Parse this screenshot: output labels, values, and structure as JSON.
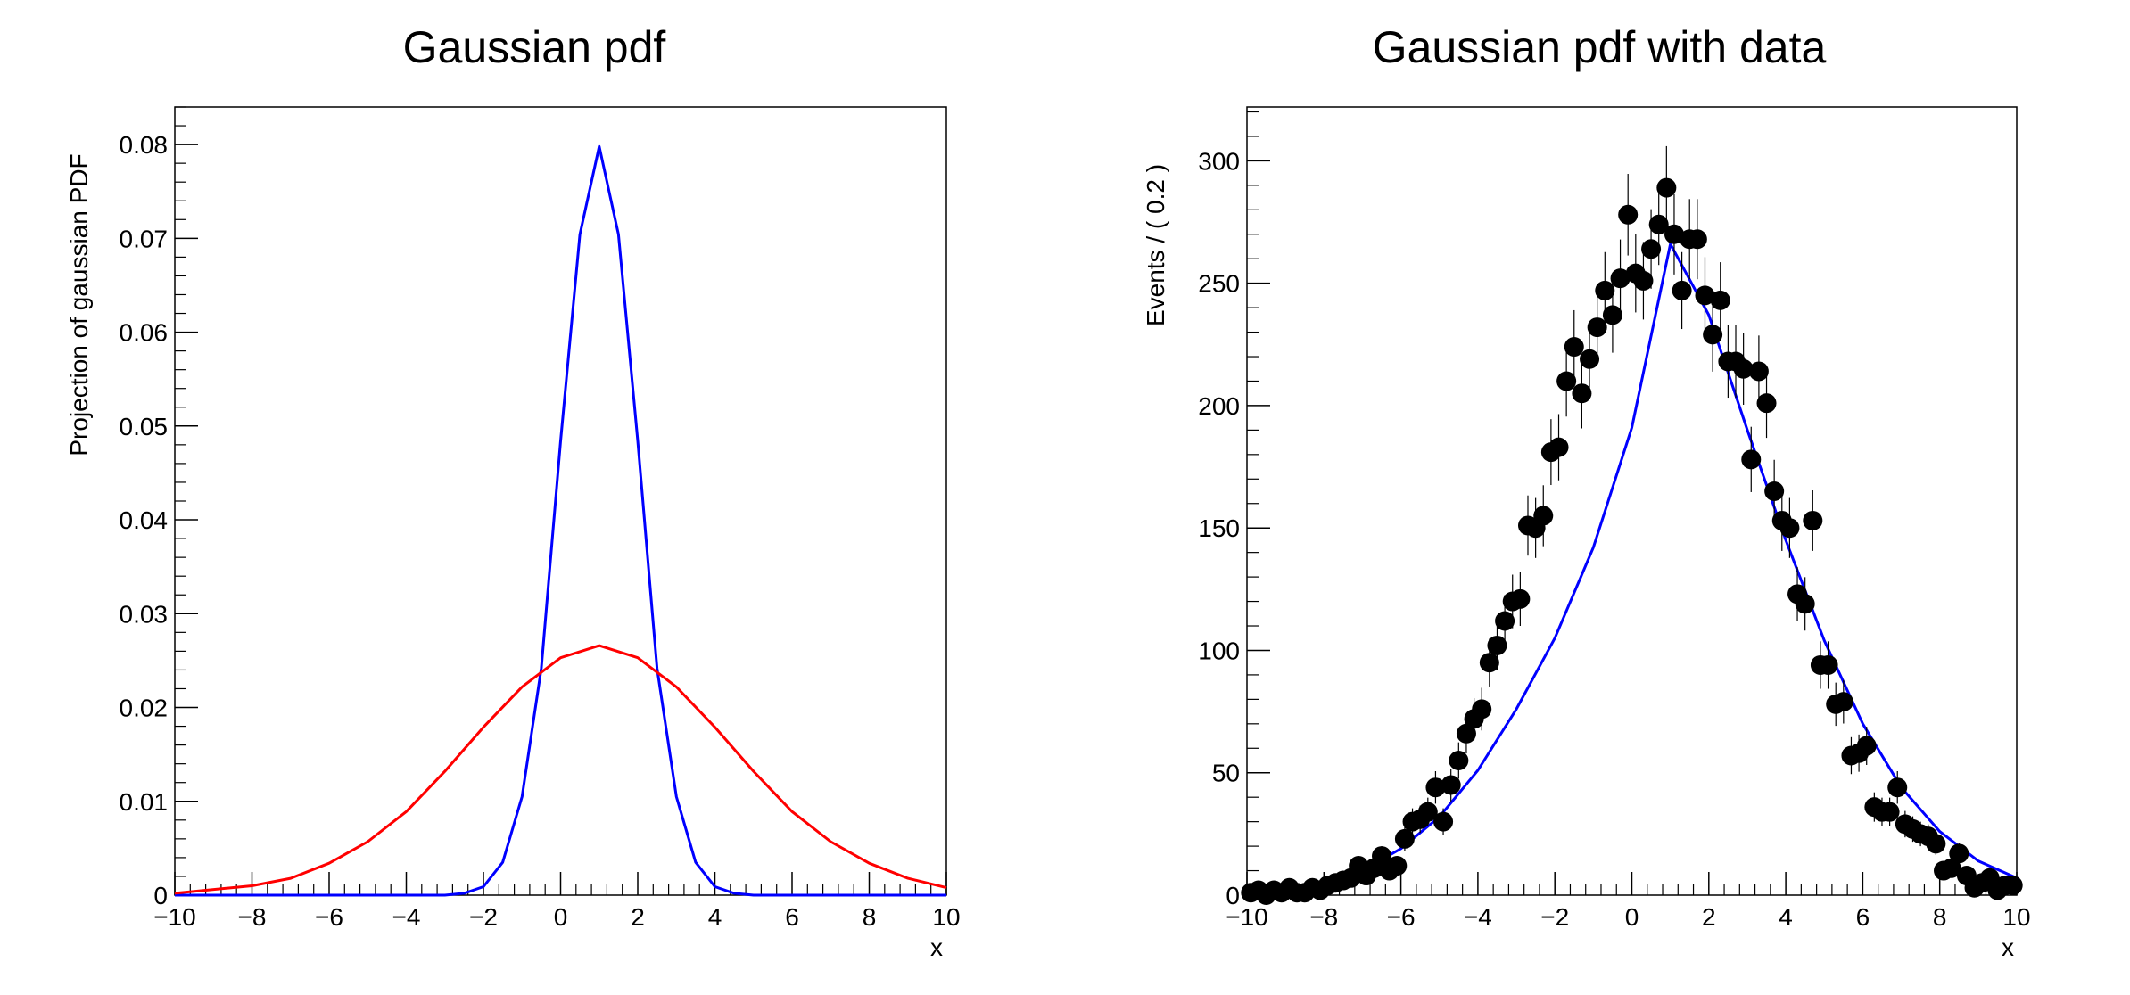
{
  "chart_data": [
    {
      "type": "line",
      "title": "Gaussian pdf",
      "xlabel": "x",
      "ylabel": "Projection of gaussian PDF",
      "xlim": [
        -10,
        10
      ],
      "ylim": [
        0,
        0.084
      ],
      "xticks": [
        "−10",
        "−8",
        "−6",
        "−4",
        "−2",
        "0",
        "2",
        "4",
        "6",
        "8",
        "10"
      ],
      "yticks": [
        "0",
        "0.01",
        "0.02",
        "0.03",
        "0.04",
        "0.05",
        "0.06",
        "0.07",
        "0.08"
      ],
      "grid": false,
      "series": [
        {
          "color": "#0000ff",
          "x": [
            -10,
            -3,
            -2.5,
            -2,
            -1.5,
            -1,
            -0.5,
            0,
            0.5,
            1,
            1.5,
            2,
            2.5,
            3,
            3.5,
            4,
            4.5,
            5,
            10
          ],
          "y": [
            0,
            0,
            0.0002,
            0.0009,
            0.0035,
            0.0105,
            0.0242,
            0.0484,
            0.0704,
            0.0798,
            0.0704,
            0.0484,
            0.0242,
            0.0105,
            0.0035,
            0.0009,
            0.0002,
            0,
            0
          ]
        },
        {
          "color": "#ff0000",
          "x": [
            -10,
            -8,
            -7,
            -6,
            -5,
            -4,
            -3,
            -2,
            -1,
            0,
            1,
            2,
            3,
            4,
            5,
            6,
            7,
            8,
            9,
            10
          ],
          "y": [
            0.0002,
            0.001,
            0.0018,
            0.0034,
            0.0057,
            0.0089,
            0.0132,
            0.0179,
            0.0222,
            0.0253,
            0.0266,
            0.0253,
            0.0222,
            0.0179,
            0.0132,
            0.0089,
            0.0057,
            0.0034,
            0.0018,
            0.0008
          ]
        }
      ]
    },
    {
      "type": "scatter",
      "title": "Gaussian pdf with data",
      "xlabel": "x",
      "ylabel": "Events / ( 0.2 )",
      "xlim": [
        -10,
        10
      ],
      "ylim": [
        0,
        322
      ],
      "xticks": [
        "−10",
        "−8",
        "−6",
        "−4",
        "−2",
        "0",
        "2",
        "4",
        "6",
        "8",
        "10"
      ],
      "yticks": [
        "0",
        "50",
        "100",
        "150",
        "200",
        "250",
        "300"
      ],
      "grid": false,
      "points": {
        "color": "#000000",
        "x": [
          -9.9,
          -9.7,
          -9.5,
          -9.3,
          -9.1,
          -8.9,
          -8.7,
          -8.5,
          -8.3,
          -8.1,
          -7.9,
          -7.7,
          -7.5,
          -7.3,
          -7.1,
          -6.9,
          -6.7,
          -6.5,
          -6.3,
          -6.1,
          -5.9,
          -5.7,
          -5.5,
          -5.3,
          -5.1,
          -4.9,
          -4.7,
          -4.5,
          -4.3,
          -4.1,
          -3.9,
          -3.7,
          -3.5,
          -3.3,
          -3.1,
          -2.9,
          -2.7,
          -2.5,
          -2.3,
          -2.1,
          -1.9,
          -1.7,
          -1.5,
          -1.3,
          -1.1,
          -0.9,
          -0.7,
          -0.5,
          -0.3,
          -0.1,
          0.1,
          0.3,
          0.5,
          0.7,
          0.9,
          1.1,
          1.3,
          1.5,
          1.7,
          1.9,
          2.1,
          2.3,
          2.5,
          2.7,
          2.9,
          3.1,
          3.3,
          3.5,
          3.7,
          3.9,
          4.1,
          4.3,
          4.5,
          4.7,
          4.9,
          5.1,
          5.3,
          5.5,
          5.7,
          5.9,
          6.1,
          6.3,
          6.5,
          6.7,
          6.9,
          7.1,
          7.3,
          7.5,
          7.7,
          7.9,
          8.1,
          8.3,
          8.5,
          8.7,
          8.9,
          9.1,
          9.3,
          9.5,
          9.7,
          9.9
        ],
        "y": [
          1,
          2,
          0,
          2,
          1,
          3,
          1,
          1,
          3,
          2,
          4,
          5,
          6,
          7,
          12,
          8,
          11,
          16,
          10,
          12,
          23,
          30,
          31,
          34,
          44,
          30,
          45,
          55,
          66,
          72,
          76,
          95,
          102,
          112,
          120,
          121,
          151,
          150,
          155,
          181,
          183,
          210,
          224,
          205,
          219,
          232,
          247,
          237,
          252,
          278,
          254,
          251,
          264,
          274,
          289,
          270,
          247,
          268,
          268,
          245,
          229,
          243,
          218,
          218,
          215,
          178,
          214,
          201,
          165,
          153,
          150,
          123,
          119,
          153,
          94,
          94,
          78,
          79,
          57,
          58,
          61,
          36,
          34,
          34,
          44,
          29,
          27,
          25,
          24,
          21,
          10,
          11,
          17,
          8,
          3,
          5,
          7,
          2,
          4,
          4
        ]
      },
      "series": [
        {
          "color": "#0000ff",
          "x": [
            -10,
            -9,
            -8,
            -7,
            -6,
            -5,
            -4,
            -3,
            -2,
            -1,
            0,
            1,
            2,
            3,
            4,
            5,
            6,
            7,
            8,
            9,
            10
          ],
          "y": [
            1,
            2,
            5,
            10,
            19,
            32,
            51,
            76,
            105,
            142,
            191,
            266,
            237,
            190,
            145,
            104,
            70,
            44,
            26,
            14,
            7
          ]
        }
      ]
    }
  ]
}
